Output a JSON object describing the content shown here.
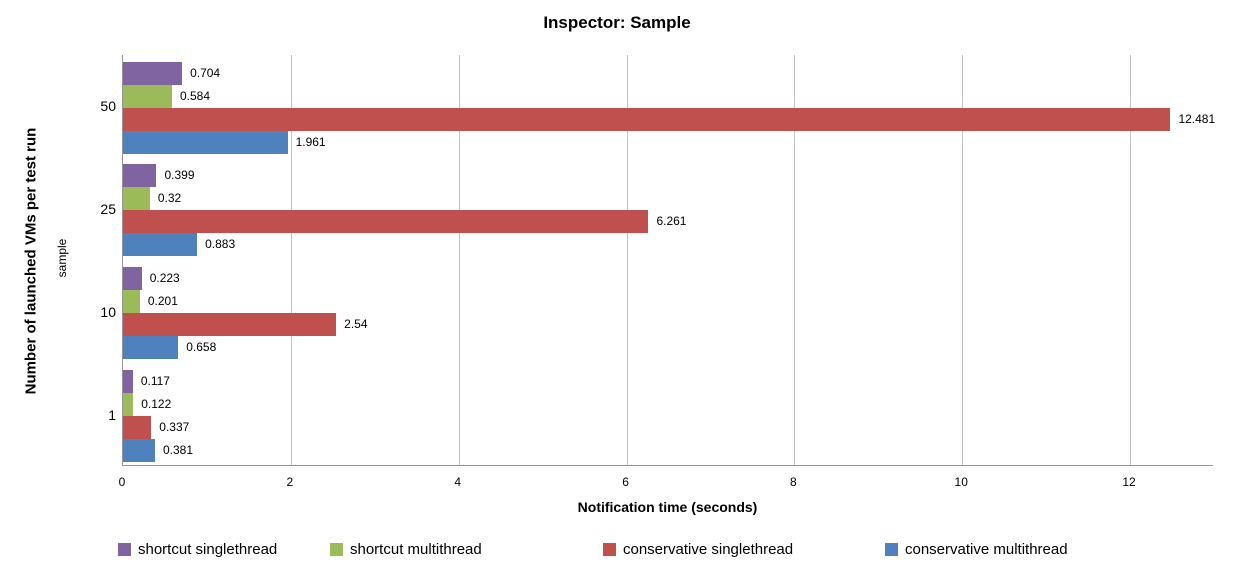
{
  "chart_data": {
    "type": "bar",
    "orientation": "horizontal",
    "title": "Inspector: Sample",
    "categories": [
      "50",
      "25",
      "10",
      "1"
    ],
    "series": [
      {
        "name": "shortcut singlethread",
        "color": "#8064A2",
        "values": [
          0.704,
          0.399,
          0.223,
          0.117
        ],
        "labels": [
          "0.704",
          "0.399",
          "0.223",
          "0.117"
        ]
      },
      {
        "name": "shortcut multithread",
        "color": "#9BBB59",
        "values": [
          0.584,
          0.32,
          0.201,
          0.122
        ],
        "labels": [
          "0.584",
          "0.32",
          "0.201",
          "0.122"
        ]
      },
      {
        "name": "conservative singlethread",
        "color": "#C0504D",
        "values": [
          12.481,
          6.261,
          2.54,
          0.337
        ],
        "labels": [
          "12.481",
          "6.261",
          "2.54",
          "0.337"
        ]
      },
      {
        "name": "conservative multithread",
        "color": "#4F81BD",
        "values": [
          1.961,
          0.883,
          0.658,
          0.381
        ],
        "labels": [
          "1.961",
          "0.883",
          "0.658",
          "0.381"
        ]
      }
    ],
    "xlabel": "Notification time (seconds)",
    "ylabel": "Number of launched VMs per test run",
    "ylabel_secondary": "sample",
    "x_ticks": [
      "0",
      "2",
      "4",
      "6",
      "8",
      "10",
      "12"
    ],
    "xlim": [
      0,
      13
    ],
    "grid": true,
    "legend_position": "bottom",
    "data_labels": true,
    "gridline_color": "#C3C3C3",
    "axis_color": "#969696"
  }
}
